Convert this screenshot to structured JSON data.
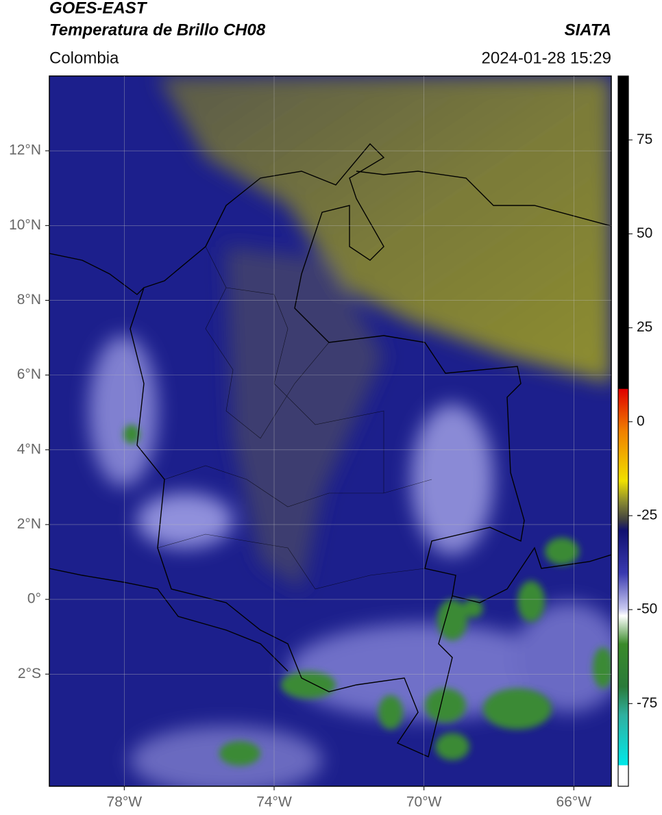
{
  "header": {
    "title": "GOES-EAST",
    "subtitle": "Temperatura de Brillo CH08",
    "region": "Colombia",
    "source": "SIATA",
    "datetime": "2024-01-28 15:29"
  },
  "map": {
    "xlim": [
      -80,
      -65
    ],
    "ylim": [
      -5,
      14
    ],
    "xticks": [
      {
        "value": -78,
        "label": "78°W"
      },
      {
        "value": -74,
        "label": "74°W"
      },
      {
        "value": -70,
        "label": "70°W"
      },
      {
        "value": -66,
        "label": "66°W"
      }
    ],
    "yticks": [
      {
        "value": 12,
        "label": "12°N"
      },
      {
        "value": 10,
        "label": "10°N"
      },
      {
        "value": 8,
        "label": "8°N"
      },
      {
        "value": 6,
        "label": "6°N"
      },
      {
        "value": 4,
        "label": "4°N"
      },
      {
        "value": 2,
        "label": "2°N"
      },
      {
        "value": 0,
        "label": "0°"
      },
      {
        "value": -2,
        "label": "2°S"
      }
    ],
    "grid": true
  },
  "colorbar": {
    "lim": [
      -97,
      92
    ],
    "ticks": [
      75,
      50,
      25,
      0,
      -25,
      -50,
      -75
    ]
  }
}
